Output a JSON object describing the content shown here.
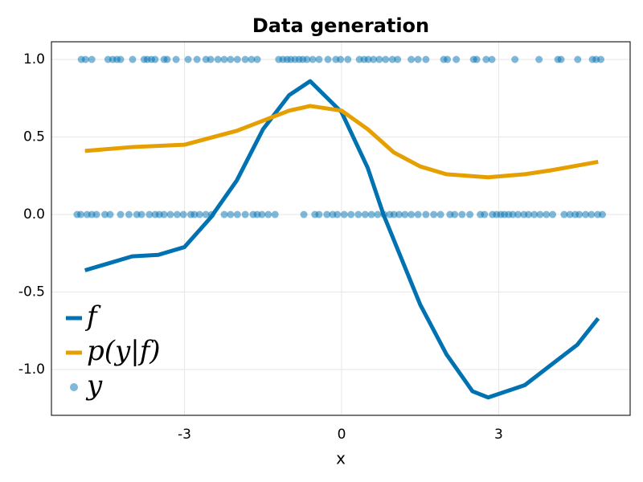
{
  "chart_data": {
    "type": "line",
    "title": "Data generation",
    "x_label": "x",
    "xlim": [
      -5.54,
      5.51
    ],
    "ylim": [
      -1.295,
      1.114
    ],
    "xticks": [
      -3,
      0,
      3
    ],
    "yticks": [
      {
        "value": 1,
        "label": "1.0"
      },
      {
        "value": 0.5,
        "label": "0.5"
      },
      {
        "value": 0,
        "label": "0.0"
      },
      {
        "value": -0.5,
        "label": "-0.5"
      },
      {
        "value": -1,
        "label": "-1.0"
      }
    ],
    "grid": true,
    "legend_position": "bottom-left",
    "series": [
      {
        "name": "f",
        "type": "line",
        "color": "#0072b2",
        "x": [
          -4.9,
          -4.5,
          -4,
          -3.5,
          -3,
          -2.5,
          -2,
          -1.5,
          -1,
          -0.6,
          0,
          0.5,
          0.8,
          1.5,
          2,
          2.5,
          2.8,
          3.5,
          4,
          4.5,
          4.9
        ],
        "values": [
          -0.36,
          -0.32,
          -0.27,
          -0.26,
          -0.21,
          -0.02,
          0.22,
          0.55,
          0.77,
          0.86,
          0.66,
          0.3,
          0,
          -0.58,
          -0.9,
          -1.14,
          -1.18,
          -1.1,
          -0.97,
          -0.84,
          -0.67
        ]
      },
      {
        "name": "p(y|f)",
        "type": "line",
        "color": "#e69f00",
        "x": [
          -4.9,
          -4,
          -3,
          -2,
          -1,
          -0.6,
          0,
          0.5,
          1,
          1.5,
          2,
          2.8,
          3.5,
          4,
          4.9
        ],
        "values": [
          0.41,
          0.435,
          0.45,
          0.54,
          0.67,
          0.7,
          0.67,
          0.55,
          0.4,
          0.31,
          0.26,
          0.24,
          0.26,
          0.285,
          0.34
        ]
      },
      {
        "name": "y",
        "type": "scatter",
        "color": "#0072b2",
        "x": [
          -4.97,
          -4.89,
          -4.77,
          -4.46,
          -4.37,
          -4.29,
          -4.22,
          -3.99,
          -3.77,
          -3.71,
          -3.63,
          -3.56,
          -3.39,
          -3.33,
          -3.16,
          -2.93,
          -2.76,
          -2.59,
          -2.5,
          -2.36,
          -2.24,
          -2.12,
          -1.99,
          -1.84,
          -1.72,
          -1.61,
          -1.2,
          -1.12,
          -1.04,
          -0.97,
          -0.89,
          -0.81,
          -0.74,
          -0.66,
          -0.55,
          -0.43,
          -0.26,
          -0.11,
          -0.02,
          0.12,
          0.34,
          0.43,
          0.51,
          0.61,
          0.72,
          0.84,
          0.97,
          1.07,
          1.33,
          1.46,
          1.61,
          1.95,
          2.02,
          2.19,
          2.52,
          2.58,
          2.76,
          2.87,
          3.31,
          3.77,
          4.13,
          4.19,
          4.51,
          4.79,
          4.86,
          4.95,
          -5.05,
          -4.98,
          -4.86,
          -4.77,
          -4.68,
          -4.52,
          -4.42,
          -4.22,
          -4.06,
          -3.91,
          -3.82,
          -3.67,
          -3.56,
          -3.48,
          -3.39,
          -3.27,
          -3.14,
          -3.02,
          -2.88,
          -2.81,
          -2.71,
          -2.59,
          -2.48,
          -2.24,
          -2.12,
          -1.99,
          -1.84,
          -1.69,
          -1.61,
          -1.52,
          -1.4,
          -1.27,
          -0.72,
          -0.51,
          -0.43,
          -0.28,
          -0.17,
          -0.08,
          0.05,
          0.18,
          0.32,
          0.45,
          0.57,
          0.69,
          0.81,
          0.92,
          1,
          1.1,
          1.21,
          1.33,
          1.46,
          1.61,
          1.76,
          1.89,
          2.07,
          2.16,
          2.3,
          2.45,
          2.65,
          2.73,
          2.88,
          2.96,
          3.04,
          3.11,
          3.19,
          3.27,
          3.37,
          3.48,
          3.57,
          3.68,
          3.79,
          3.91,
          4.03,
          4.25,
          4.36,
          4.46,
          4.54,
          4.66,
          4.77,
          4.89,
          4.98
        ],
        "values": [
          1,
          1,
          1,
          1,
          1,
          1,
          1,
          1,
          1,
          1,
          1,
          1,
          1,
          1,
          1,
          1,
          1,
          1,
          1,
          1,
          1,
          1,
          1,
          1,
          1,
          1,
          1,
          1,
          1,
          1,
          1,
          1,
          1,
          1,
          1,
          1,
          1,
          1,
          1,
          1,
          1,
          1,
          1,
          1,
          1,
          1,
          1,
          1,
          1,
          1,
          1,
          1,
          1,
          1,
          1,
          1,
          1,
          1,
          1,
          1,
          1,
          1,
          1,
          1,
          1,
          1,
          0,
          0,
          0,
          0,
          0,
          0,
          0,
          0,
          0,
          0,
          0,
          0,
          0,
          0,
          0,
          0,
          0,
          0,
          0,
          0,
          0,
          0,
          0,
          0,
          0,
          0,
          0,
          0,
          0,
          0,
          0,
          0,
          0,
          0,
          0,
          0,
          0,
          0,
          0,
          0,
          0,
          0,
          0,
          0,
          0,
          0,
          0,
          0,
          0,
          0,
          0,
          0,
          0,
          0,
          0,
          0,
          0,
          0,
          0,
          0,
          0,
          0,
          0,
          0,
          0,
          0,
          0,
          0,
          0,
          0,
          0,
          0,
          0,
          0,
          0,
          0,
          0,
          0,
          0,
          0,
          0
        ]
      }
    ]
  }
}
